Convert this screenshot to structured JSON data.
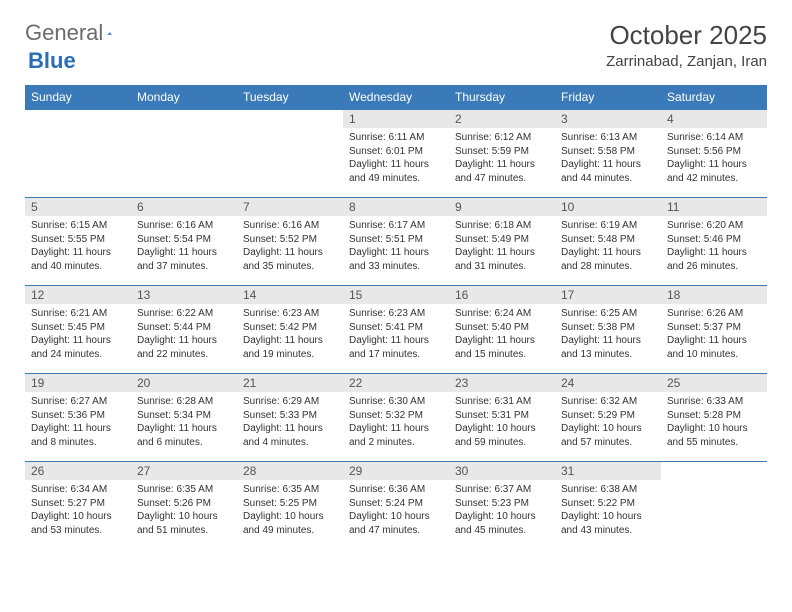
{
  "brand": {
    "name_gray": "General",
    "name_blue": "Blue",
    "blue_color": "#2a6db8"
  },
  "title": "October 2025",
  "location": "Zarrinabad, Zanjan, Iran",
  "header_bg": "#3a7ab8",
  "daynum_bg": "#e8e8e8",
  "border_color": "#3a7ab8",
  "day_names": [
    "Sunday",
    "Monday",
    "Tuesday",
    "Wednesday",
    "Thursday",
    "Friday",
    "Saturday"
  ],
  "weeks": [
    [
      null,
      null,
      null,
      {
        "n": "1",
        "sr": "6:11 AM",
        "ss": "6:01 PM",
        "dl": "11 hours and 49 minutes."
      },
      {
        "n": "2",
        "sr": "6:12 AM",
        "ss": "5:59 PM",
        "dl": "11 hours and 47 minutes."
      },
      {
        "n": "3",
        "sr": "6:13 AM",
        "ss": "5:58 PM",
        "dl": "11 hours and 44 minutes."
      },
      {
        "n": "4",
        "sr": "6:14 AM",
        "ss": "5:56 PM",
        "dl": "11 hours and 42 minutes."
      }
    ],
    [
      {
        "n": "5",
        "sr": "6:15 AM",
        "ss": "5:55 PM",
        "dl": "11 hours and 40 minutes."
      },
      {
        "n": "6",
        "sr": "6:16 AM",
        "ss": "5:54 PM",
        "dl": "11 hours and 37 minutes."
      },
      {
        "n": "7",
        "sr": "6:16 AM",
        "ss": "5:52 PM",
        "dl": "11 hours and 35 minutes."
      },
      {
        "n": "8",
        "sr": "6:17 AM",
        "ss": "5:51 PM",
        "dl": "11 hours and 33 minutes."
      },
      {
        "n": "9",
        "sr": "6:18 AM",
        "ss": "5:49 PM",
        "dl": "11 hours and 31 minutes."
      },
      {
        "n": "10",
        "sr": "6:19 AM",
        "ss": "5:48 PM",
        "dl": "11 hours and 28 minutes."
      },
      {
        "n": "11",
        "sr": "6:20 AM",
        "ss": "5:46 PM",
        "dl": "11 hours and 26 minutes."
      }
    ],
    [
      {
        "n": "12",
        "sr": "6:21 AM",
        "ss": "5:45 PM",
        "dl": "11 hours and 24 minutes."
      },
      {
        "n": "13",
        "sr": "6:22 AM",
        "ss": "5:44 PM",
        "dl": "11 hours and 22 minutes."
      },
      {
        "n": "14",
        "sr": "6:23 AM",
        "ss": "5:42 PM",
        "dl": "11 hours and 19 minutes."
      },
      {
        "n": "15",
        "sr": "6:23 AM",
        "ss": "5:41 PM",
        "dl": "11 hours and 17 minutes."
      },
      {
        "n": "16",
        "sr": "6:24 AM",
        "ss": "5:40 PM",
        "dl": "11 hours and 15 minutes."
      },
      {
        "n": "17",
        "sr": "6:25 AM",
        "ss": "5:38 PM",
        "dl": "11 hours and 13 minutes."
      },
      {
        "n": "18",
        "sr": "6:26 AM",
        "ss": "5:37 PM",
        "dl": "11 hours and 10 minutes."
      }
    ],
    [
      {
        "n": "19",
        "sr": "6:27 AM",
        "ss": "5:36 PM",
        "dl": "11 hours and 8 minutes."
      },
      {
        "n": "20",
        "sr": "6:28 AM",
        "ss": "5:34 PM",
        "dl": "11 hours and 6 minutes."
      },
      {
        "n": "21",
        "sr": "6:29 AM",
        "ss": "5:33 PM",
        "dl": "11 hours and 4 minutes."
      },
      {
        "n": "22",
        "sr": "6:30 AM",
        "ss": "5:32 PM",
        "dl": "11 hours and 2 minutes."
      },
      {
        "n": "23",
        "sr": "6:31 AM",
        "ss": "5:31 PM",
        "dl": "10 hours and 59 minutes."
      },
      {
        "n": "24",
        "sr": "6:32 AM",
        "ss": "5:29 PM",
        "dl": "10 hours and 57 minutes."
      },
      {
        "n": "25",
        "sr": "6:33 AM",
        "ss": "5:28 PM",
        "dl": "10 hours and 55 minutes."
      }
    ],
    [
      {
        "n": "26",
        "sr": "6:34 AM",
        "ss": "5:27 PM",
        "dl": "10 hours and 53 minutes."
      },
      {
        "n": "27",
        "sr": "6:35 AM",
        "ss": "5:26 PM",
        "dl": "10 hours and 51 minutes."
      },
      {
        "n": "28",
        "sr": "6:35 AM",
        "ss": "5:25 PM",
        "dl": "10 hours and 49 minutes."
      },
      {
        "n": "29",
        "sr": "6:36 AM",
        "ss": "5:24 PM",
        "dl": "10 hours and 47 minutes."
      },
      {
        "n": "30",
        "sr": "6:37 AM",
        "ss": "5:23 PM",
        "dl": "10 hours and 45 minutes."
      },
      {
        "n": "31",
        "sr": "6:38 AM",
        "ss": "5:22 PM",
        "dl": "10 hours and 43 minutes."
      },
      null
    ]
  ],
  "labels": {
    "sunrise": "Sunrise:",
    "sunset": "Sunset:",
    "daylight": "Daylight:"
  }
}
